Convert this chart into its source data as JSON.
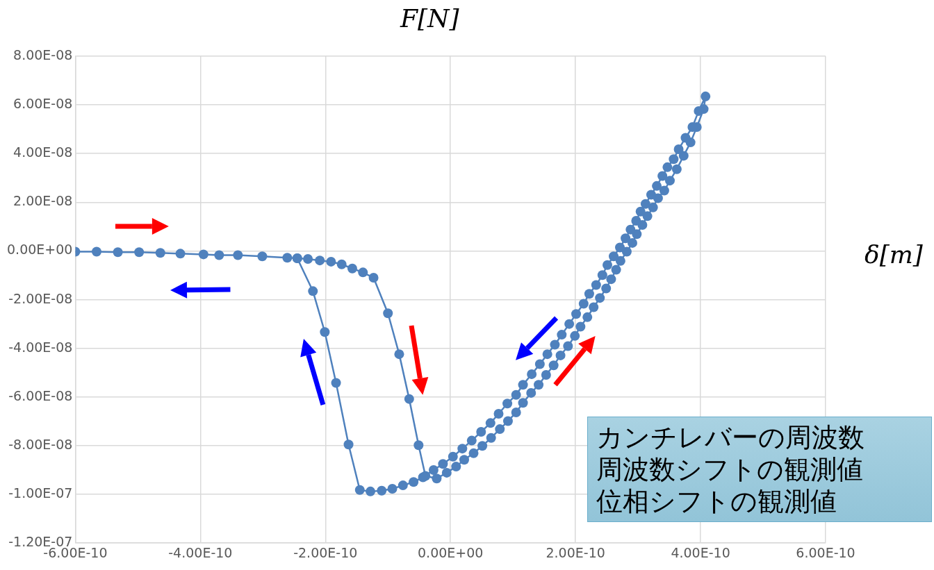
{
  "chart_data": {
    "type": "line",
    "xlabel": "δ[m]",
    "ylabel": "F[N]",
    "marker": "circle",
    "grid": true,
    "legend": false,
    "xlim": [
      -6e-10,
      6e-10
    ],
    "ylim": [
      -1.2e-07,
      8e-08
    ],
    "xticks": [
      {
        "value": -6e-10,
        "label": "-6.00E-10"
      },
      {
        "value": -4e-10,
        "label": "-4.00E-10"
      },
      {
        "value": -2e-10,
        "label": "-2.00E-10"
      },
      {
        "value": 0,
        "label": "0.00E+00"
      },
      {
        "value": 2e-10,
        "label": "2.00E-10"
      },
      {
        "value": 4e-10,
        "label": "4.00E-10"
      },
      {
        "value": 6e-10,
        "label": "6.00E-10"
      }
    ],
    "yticks": [
      {
        "value": -1.2e-07,
        "label": "-1.20E-07"
      },
      {
        "value": -1e-07,
        "label": "-1.00E-07"
      },
      {
        "value": -8e-08,
        "label": "-8.00E-08"
      },
      {
        "value": -6e-08,
        "label": "-6.00E-08"
      },
      {
        "value": -4e-08,
        "label": "-4.00E-08"
      },
      {
        "value": -2e-08,
        "label": "-2.00E-08"
      },
      {
        "value": 0,
        "label": "0.00E+00"
      },
      {
        "value": 2e-08,
        "label": "2.00E-08"
      },
      {
        "value": 4e-08,
        "label": "4.00E-08"
      },
      {
        "value": 6e-08,
        "label": "6.00E-08"
      },
      {
        "value": 8e-08,
        "label": "8.00E-08"
      }
    ],
    "annotations": [
      "カンチレバーの周波数",
      "周波数シフトの観測値",
      "位相シフトの観測値"
    ],
    "series": [
      {
        "color": "#4f81bd",
        "x": [
          -6e-10,
          -5.66e-10,
          -5.32e-10,
          -4.98e-10,
          -4.64e-10,
          -4.32e-10,
          -3.95e-10,
          -3.7e-10,
          -3.4e-10,
          -3.01e-10,
          -2.61e-10,
          -2.45e-10,
          -2.28e-10,
          -2.09e-10,
          -1.91e-10,
          -1.74e-10,
          -1.57e-10,
          -1.4e-10,
          -1.23e-10,
          -1e-10,
          -8.2e-11,
          -6.6e-11,
          -5.1e-11,
          -4e-11,
          -2.2e-11,
          -6e-12,
          9e-12,
          2.2e-11,
          3.7e-11,
          5.1e-11,
          6.5e-11,
          7.9e-11,
          9.2e-11,
          1.05e-10,
          1.16e-10,
          1.29e-10,
          1.41e-10,
          1.53e-10,
          1.65e-10,
          1.76e-10,
          1.88e-10,
          1.99e-10,
          2.08e-10,
          2.19e-10,
          2.29e-10,
          2.39e-10,
          2.49e-10,
          2.57e-10,
          2.65e-10,
          2.72e-10,
          2.82e-10,
          2.91e-10,
          2.98e-10,
          3.07e-10,
          3.15e-10,
          3.24e-10,
          3.32e-10,
          3.42e-10,
          3.51e-10,
          3.62e-10,
          3.73e-10,
          3.84e-10,
          3.94e-10,
          4.05e-10,
          4.08e-10,
          3.97e-10,
          3.87e-10,
          3.76e-10,
          3.65e-10,
          3.57e-10,
          3.47e-10,
          3.39e-10,
          3.3e-10,
          3.21e-10,
          3.12e-10,
          3.04e-10,
          2.97e-10,
          2.88e-10,
          2.8e-10,
          2.71e-10,
          2.61e-10,
          2.51e-10,
          2.43e-10,
          2.33e-10,
          2.22e-10,
          2.13e-10,
          2.01e-10,
          1.9e-10,
          1.78e-10,
          1.67e-10,
          1.55e-10,
          1.43e-10,
          1.3e-10,
          1.16e-10,
          1.05e-10,
          9.1e-11,
          7.7e-11,
          6.4e-11,
          4.9e-11,
          3.4e-11,
          1.9e-11,
          4e-12,
          -1.2e-11,
          -2.7e-11,
          -4.4e-11,
          -5.9e-11,
          -7.6e-11,
          -9.3e-11,
          -1.1e-10,
          -1.28e-10,
          -1.45e-10,
          -1.63e-10,
          -1.83e-10,
          -2.01e-10,
          -2.2e-10,
          -2.45e-10
        ],
        "values": [
          -3e-10,
          -3e-10,
          -5e-10,
          -5e-10,
          -8e-10,
          -1.1e-09,
          -1.4e-09,
          -1.7e-09,
          -1.7e-09,
          -2.2e-09,
          -2.8e-09,
          -3e-09,
          -3.3e-09,
          -3.9e-09,
          -4.4e-09,
          -5.5e-09,
          -7.2e-09,
          -8.8e-09,
          -1.1e-08,
          -2.56e-08,
          -4.24e-08,
          -6.08e-08,
          -7.98e-08,
          -9.24e-08,
          -9.35e-08,
          -9.11e-08,
          -8.86e-08,
          -8.58e-08,
          -8.31e-08,
          -8.01e-08,
          -7.68e-08,
          -7.32e-08,
          -6.99e-08,
          -6.63e-08,
          -6.24e-08,
          -5.83e-08,
          -5.5e-08,
          -5.09e-08,
          -4.7e-08,
          -4.29e-08,
          -3.91e-08,
          -3.49e-08,
          -3.11e-08,
          -2.72e-08,
          -2.31e-08,
          -1.93e-08,
          -1.54e-08,
          -1.16e-08,
          -7.7e-09,
          -4.1e-09,
          -3e-10,
          3.3e-09,
          6.9e-09,
          1.07e-08,
          1.43e-08,
          1.79e-08,
          2.17e-08,
          2.48e-08,
          2.89e-08,
          3.36e-08,
          3.91e-08,
          4.46e-08,
          5.09e-08,
          5.83e-08,
          6.35e-08,
          5.75e-08,
          5.09e-08,
          4.65e-08,
          4.18e-08,
          3.77e-08,
          3.44e-08,
          3.08e-08,
          2.67e-08,
          2.31e-08,
          1.93e-08,
          1.62e-08,
          1.24e-08,
          8.8e-09,
          5.2e-09,
          1.4e-09,
          -2.2e-09,
          -5.8e-09,
          -9.9e-09,
          -1.4e-08,
          -1.76e-08,
          -2.17e-08,
          -2.59e-08,
          -3e-08,
          -3.44e-08,
          -3.85e-08,
          -4.24e-08,
          -4.65e-08,
          -5.06e-08,
          -5.5e-08,
          -5.91e-08,
          -6.27e-08,
          -6.69e-08,
          -7.07e-08,
          -7.43e-08,
          -7.79e-08,
          -8.12e-08,
          -8.45e-08,
          -8.75e-08,
          -9e-08,
          -9.3e-08,
          -9.49e-08,
          -9.63e-08,
          -9.77e-08,
          -9.85e-08,
          -9.88e-08,
          -9.82e-08,
          -7.95e-08,
          -5.42e-08,
          -3.33e-08,
          -1.65e-08,
          -3e-09
        ]
      }
    ]
  }
}
